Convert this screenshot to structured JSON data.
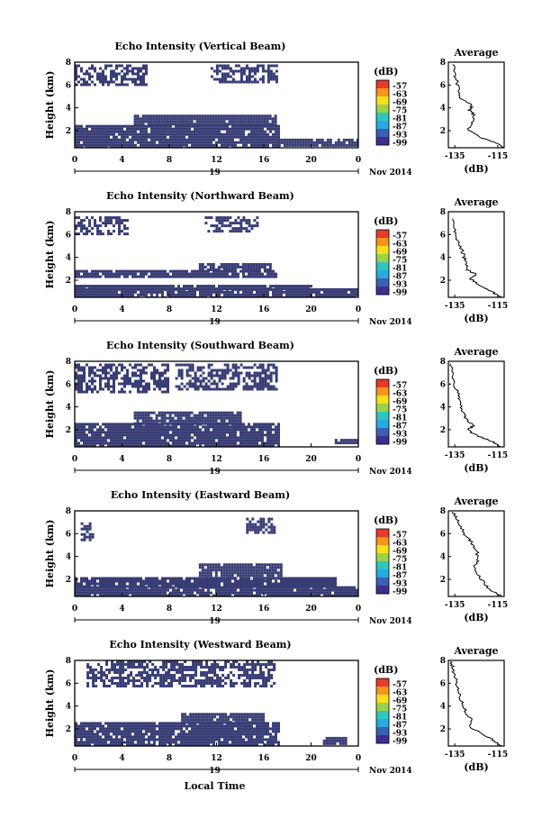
{
  "figure": {
    "x_axis_label": "Local Time",
    "date_label": "Nov 2014",
    "day_label": "19",
    "colorbar_unit": "(dB)",
    "colorbar_ticks": [
      "-57",
      "-63",
      "-69",
      "-75",
      "-81",
      "-87",
      "-93",
      "-99"
    ],
    "average_title": "Average",
    "average_unit": "(dB)"
  },
  "chart_data": [
    {
      "type": "heatmap",
      "title": "Echo Intensity (Vertical Beam)",
      "ylabel": "Height (km)",
      "xlabel": "",
      "x_ticks": [
        "0",
        "4",
        "8",
        "12",
        "16",
        "20",
        "0"
      ],
      "y_ticks": [
        "2",
        "4",
        "6",
        "8"
      ],
      "xlim": [
        0,
        24
      ],
      "ylim": [
        0.5,
        8
      ],
      "color_range_dB": [
        -99,
        -57
      ],
      "regions_hours_km": [
        {
          "t0": 0,
          "t1": 17.2,
          "h0": 0.5,
          "h1": 2.5
        },
        {
          "t0": 5,
          "t1": 17,
          "h0": 2.5,
          "h1": 3.4
        },
        {
          "t0": 0,
          "t1": 6,
          "h0": 6.0,
          "h1": 7.8
        },
        {
          "t0": 11.5,
          "t1": 17,
          "h0": 6.2,
          "h1": 7.8
        },
        {
          "t0": 17.2,
          "t1": 24,
          "h0": 0.6,
          "h1": 1.3
        }
      ],
      "average": {
        "x_ticks": [
          "-135",
          "-115"
        ],
        "y_ticks": [
          "2",
          "4",
          "6",
          "8"
        ],
        "xlim": [
          -138,
          -112
        ],
        "ylim": [
          0.5,
          8
        ],
        "profile": [
          [
            -112,
            0.5
          ],
          [
            -117,
            1.0
          ],
          [
            -124,
            1.5
          ],
          [
            -129,
            2.1
          ],
          [
            -127,
            2.7
          ],
          [
            -126,
            3.3
          ],
          [
            -128,
            3.8
          ],
          [
            -127,
            4.2
          ],
          [
            -132,
            4.8
          ],
          [
            -133,
            5.5
          ],
          [
            -134,
            6.2
          ],
          [
            -135,
            7.0
          ],
          [
            -136,
            7.8
          ]
        ]
      }
    },
    {
      "type": "heatmap",
      "title": "Echo Intensity (Northward Beam)",
      "ylabel": "Height (km)",
      "xlabel": "",
      "x_ticks": [
        "0",
        "4",
        "8",
        "12",
        "16",
        "20",
        "0"
      ],
      "y_ticks": [
        "2",
        "4",
        "6",
        "8"
      ],
      "xlim": [
        0,
        24
      ],
      "ylim": [
        0.5,
        8
      ],
      "color_range_dB": [
        -99,
        -57
      ],
      "regions_hours_km": [
        {
          "t0": 0,
          "t1": 24,
          "h0": 0.5,
          "h1": 1.3
        },
        {
          "t0": 0,
          "t1": 20,
          "h0": 1.3,
          "h1": 1.6
        },
        {
          "t0": 0,
          "t1": 17,
          "h0": 2.2,
          "h1": 2.9
        },
        {
          "t0": 10.5,
          "t1": 16.5,
          "h0": 2.9,
          "h1": 3.5
        },
        {
          "t0": 0,
          "t1": 4.5,
          "h0": 6.0,
          "h1": 7.6
        },
        {
          "t0": 11,
          "t1": 15.5,
          "h0": 6.2,
          "h1": 7.6
        }
      ],
      "average": {
        "x_ticks": [
          "-135",
          "-115"
        ],
        "y_ticks": [
          "2",
          "4",
          "6",
          "8"
        ],
        "xlim": [
          -138,
          -112
        ],
        "ylim": [
          0.5,
          8
        ],
        "profile": [
          [
            -113,
            0.5
          ],
          [
            -118,
            1.0
          ],
          [
            -124,
            1.6
          ],
          [
            -128,
            2.2
          ],
          [
            -125,
            2.5
          ],
          [
            -129,
            2.9
          ],
          [
            -130,
            3.6
          ],
          [
            -131,
            4.2
          ],
          [
            -132,
            4.8
          ],
          [
            -134,
            5.6
          ],
          [
            -135,
            6.4
          ],
          [
            -136,
            7.4
          ]
        ]
      }
    },
    {
      "type": "heatmap",
      "title": "Echo Intensity (Southward Beam)",
      "ylabel": "Height (km)",
      "xlabel": "",
      "x_ticks": [
        "0",
        "4",
        "8",
        "12",
        "16",
        "20",
        "0"
      ],
      "y_ticks": [
        "2",
        "4",
        "6",
        "8"
      ],
      "xlim": [
        0,
        24
      ],
      "ylim": [
        0.5,
        8
      ],
      "color_range_dB": [
        -99,
        -57
      ],
      "regions_hours_km": [
        {
          "t0": 0,
          "t1": 17.2,
          "h0": 0.5,
          "h1": 2.6
        },
        {
          "t0": 5,
          "t1": 14,
          "h0": 2.6,
          "h1": 3.6
        },
        {
          "t0": 0,
          "t1": 8,
          "h0": 5.3,
          "h1": 7.8
        },
        {
          "t0": 8.5,
          "t1": 17,
          "h0": 5.5,
          "h1": 7.8
        },
        {
          "t0": 22,
          "t1": 24,
          "h0": 0.8,
          "h1": 1.2
        }
      ],
      "average": {
        "x_ticks": [
          "-135",
          "-115"
        ],
        "y_ticks": [
          "2",
          "4",
          "6",
          "8"
        ],
        "xlim": [
          -138,
          -112
        ],
        "ylim": [
          0.5,
          8
        ],
        "profile": [
          [
            -113,
            0.5
          ],
          [
            -118,
            1.0
          ],
          [
            -125,
            1.5
          ],
          [
            -129,
            2.0
          ],
          [
            -126,
            2.4
          ],
          [
            -129,
            2.8
          ],
          [
            -131,
            3.4
          ],
          [
            -132,
            4.2
          ],
          [
            -133,
            5.0
          ],
          [
            -135,
            5.8
          ],
          [
            -136,
            7.0
          ],
          [
            -137,
            7.8
          ]
        ]
      }
    },
    {
      "type": "heatmap",
      "title": "Echo Intensity (Eastward Beam)",
      "ylabel": "Height (km)",
      "xlabel": "",
      "x_ticks": [
        "0",
        "4",
        "8",
        "12",
        "16",
        "20",
        "0"
      ],
      "y_ticks": [
        "2",
        "4",
        "6",
        "8"
      ],
      "xlim": [
        0,
        24
      ],
      "ylim": [
        0.5,
        8
      ],
      "color_range_dB": [
        -99,
        -57
      ],
      "regions_hours_km": [
        {
          "t0": 0,
          "t1": 24,
          "h0": 0.5,
          "h1": 1.4
        },
        {
          "t0": 0,
          "t1": 22,
          "h0": 1.4,
          "h1": 2.2
        },
        {
          "t0": 10.5,
          "t1": 17.5,
          "h0": 2.2,
          "h1": 3.4
        },
        {
          "t0": 0.5,
          "t1": 1.5,
          "h0": 5.5,
          "h1": 7.0
        },
        {
          "t0": 14.5,
          "t1": 17,
          "h0": 6.2,
          "h1": 7.4
        }
      ],
      "average": {
        "x_ticks": [
          "-135",
          "-115"
        ],
        "y_ticks": [
          "2",
          "4",
          "6",
          "8"
        ],
        "xlim": [
          -138,
          -112
        ],
        "ylim": [
          0.5,
          8
        ],
        "profile": [
          [
            -113,
            0.5
          ],
          [
            -118,
            1.0
          ],
          [
            -121,
            1.6
          ],
          [
            -124,
            2.4
          ],
          [
            -126,
            3.2
          ],
          [
            -124,
            3.8
          ],
          [
            -125,
            4.6
          ],
          [
            -127,
            5.2
          ],
          [
            -130,
            5.8
          ],
          [
            -132,
            6.6
          ],
          [
            -134,
            7.4
          ],
          [
            -136,
            7.9
          ]
        ]
      }
    },
    {
      "type": "heatmap",
      "title": "Echo Intensity (Westward Beam)",
      "ylabel": "Height (km)",
      "xlabel": "Local Time",
      "x_ticks": [
        "0",
        "4",
        "8",
        "12",
        "16",
        "20",
        "0"
      ],
      "y_ticks": [
        "2",
        "4",
        "6",
        "8"
      ],
      "xlim": [
        0,
        24
      ],
      "ylim": [
        0.5,
        8
      ],
      "color_range_dB": [
        -99,
        -57
      ],
      "regions_hours_km": [
        {
          "t0": 0,
          "t1": 17.2,
          "h0": 0.5,
          "h1": 2.6
        },
        {
          "t0": 9,
          "t1": 16,
          "h0": 2.6,
          "h1": 3.4
        },
        {
          "t0": 1,
          "t1": 17,
          "h0": 5.8,
          "h1": 8.0
        },
        {
          "t0": 21,
          "t1": 23,
          "h0": 0.8,
          "h1": 1.3
        }
      ],
      "average": {
        "x_ticks": [
          "-135",
          "-115"
        ],
        "y_ticks": [
          "2",
          "4",
          "6",
          "8"
        ],
        "xlim": [
          -138,
          -112
        ],
        "ylim": [
          0.5,
          8
        ],
        "profile": [
          [
            -113,
            0.5
          ],
          [
            -117,
            1.0
          ],
          [
            -123,
            1.6
          ],
          [
            -128,
            2.2
          ],
          [
            -127,
            2.8
          ],
          [
            -130,
            3.4
          ],
          [
            -131,
            4.2
          ],
          [
            -133,
            5.0
          ],
          [
            -134,
            5.8
          ],
          [
            -135,
            6.6
          ],
          [
            -136,
            7.4
          ],
          [
            -137,
            7.9
          ]
        ]
      }
    }
  ]
}
